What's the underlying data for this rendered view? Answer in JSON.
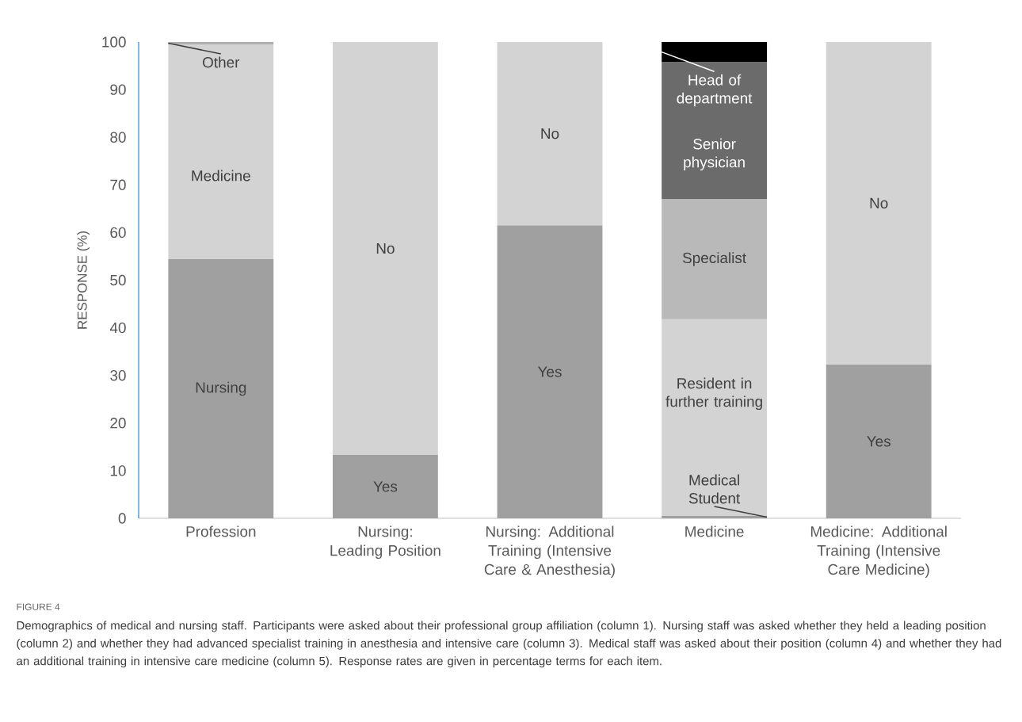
{
  "chart_data": {
    "type": "bar",
    "stacked": true,
    "ylabel": "RESPONSE (%)",
    "categories": [
      "Profession",
      "Nursing: Leading Position",
      "Nursing: Additional Training (Intensive Care & Anesthesia)",
      "Medicine",
      "Medicine: Additional Training (Intensive Care Medicine)"
    ],
    "ylim": [
      0,
      100
    ],
    "yticks": [
      0,
      10,
      20,
      30,
      40,
      50,
      60,
      70,
      80,
      90,
      100
    ],
    "series": [
      {
        "values": [
          54.4,
          13.3,
          61.5,
          0.5,
          32.3
        ],
        "colors": [
          "#a0a0a0",
          "#a0a0a0",
          "#a0a0a0",
          "#a0a0a0",
          "#a0a0a0"
        ],
        "value_labels": [
          "Nursing",
          "Yes",
          "Yes",
          "Medical Student",
          "Yes"
        ]
      },
      {
        "values": [
          45.1,
          86.7,
          38.5,
          41.3,
          67.7
        ],
        "colors": [
          "#d3d3d3",
          "#d3d3d3",
          "#d3d3d3",
          "#d3d3d3",
          "#d3d3d3"
        ],
        "value_labels": [
          "Medicine",
          "No",
          "No",
          "Resident in further training",
          "No"
        ]
      },
      {
        "values": [
          0.5,
          null,
          null,
          25.2,
          null
        ],
        "colors": [
          "#b0b0b0",
          null,
          null,
          "#b9b9b9",
          null
        ],
        "value_labels": [
          "Other",
          null,
          null,
          "Specialist",
          null
        ]
      },
      {
        "values": [
          null,
          null,
          null,
          28.8,
          null
        ],
        "colors": [
          null,
          null,
          null,
          "#6b6b6b",
          null
        ],
        "value_labels": [
          null,
          null,
          null,
          "Senior physician",
          null
        ]
      },
      {
        "values": [
          null,
          null,
          null,
          4.2,
          null
        ],
        "colors": [
          null,
          null,
          null,
          "#000000",
          null
        ],
        "value_labels": [
          null,
          null,
          null,
          "Head of department",
          null
        ]
      }
    ],
    "annotations": [
      "FIGURE 4",
      "Demographics of medical and nursing staff. Participants were asked about their professional group affiliation (column 1). Nursing staff was asked whether they held a leading position (column 2) and whether they had advanced specialist training in anesthesia and intensive care (column 3). Medical staff was asked about their position (column 4) and whether they had an additional training in intensive care medicine (column 5). Response rates are given in percentage terms for each item."
    ]
  }
}
